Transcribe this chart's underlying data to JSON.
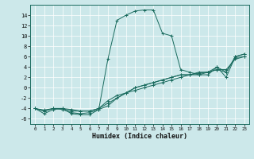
{
  "title": "",
  "xlabel": "Humidex (Indice chaleur)",
  "bg_color": "#cce8ea",
  "line_color": "#1a6b5e",
  "xlim": [
    -0.5,
    23.5
  ],
  "ylim": [
    -7,
    16
  ],
  "xticks": [
    0,
    1,
    2,
    3,
    4,
    5,
    6,
    7,
    8,
    9,
    10,
    11,
    12,
    13,
    14,
    15,
    16,
    17,
    18,
    19,
    20,
    21,
    22,
    23
  ],
  "yticks": [
    -6,
    -4,
    -2,
    0,
    2,
    4,
    6,
    8,
    10,
    12,
    14
  ],
  "lines": [
    {
      "x": [
        0,
        1,
        2,
        3,
        4,
        5,
        6,
        7,
        8,
        9,
        10,
        11,
        12,
        13,
        14,
        15,
        16,
        17,
        18,
        19,
        20,
        21,
        22,
        23
      ],
      "y": [
        -4,
        -5,
        -4.2,
        -4,
        -5,
        -5.2,
        -5.2,
        -4.2,
        5.5,
        13,
        14,
        14.8,
        15,
        15,
        10.5,
        10,
        3.5,
        3,
        2.5,
        2.5,
        4,
        2,
        6,
        6.5
      ]
    },
    {
      "x": [
        0,
        1,
        2,
        3,
        4,
        5,
        6,
        7,
        8,
        9,
        10,
        11,
        12,
        13,
        14,
        15,
        16,
        17,
        18,
        19,
        20,
        21,
        22,
        23
      ],
      "y": [
        -4,
        -4.5,
        -4,
        -4,
        -4.5,
        -4.5,
        -4.5,
        -4,
        -2.5,
        -1.5,
        -1,
        -0.5,
        0,
        0.5,
        1,
        1.5,
        2,
        2.5,
        3,
        3,
        3.5,
        3.5,
        5.5,
        6
      ]
    },
    {
      "x": [
        0,
        1,
        2,
        3,
        4,
        5,
        6,
        7,
        8,
        9,
        10,
        11,
        12,
        13,
        14,
        15,
        16,
        17,
        18,
        19,
        20,
        21,
        22,
        23
      ],
      "y": [
        -4,
        -4.5,
        -4,
        -4.2,
        -4.8,
        -5,
        -4.8,
        -4.2,
        -3.5,
        -2,
        -1,
        0,
        0.5,
        1,
        1.5,
        2,
        2.5,
        2.5,
        2.5,
        3,
        4,
        3,
        6,
        6.5
      ]
    },
    {
      "x": [
        0,
        1,
        2,
        3,
        4,
        5,
        6,
        7,
        8,
        9,
        10,
        11,
        12,
        13,
        14,
        15,
        16,
        17,
        18,
        19,
        20,
        21,
        22,
        23
      ],
      "y": [
        -4,
        -4.3,
        -4,
        -4,
        -4.2,
        -4.5,
        -4.5,
        -4,
        -3,
        -2,
        -1,
        0,
        0.5,
        1,
        1.5,
        2,
        2.5,
        2.5,
        2.8,
        3,
        3.5,
        3,
        5.8,
        6
      ]
    }
  ]
}
